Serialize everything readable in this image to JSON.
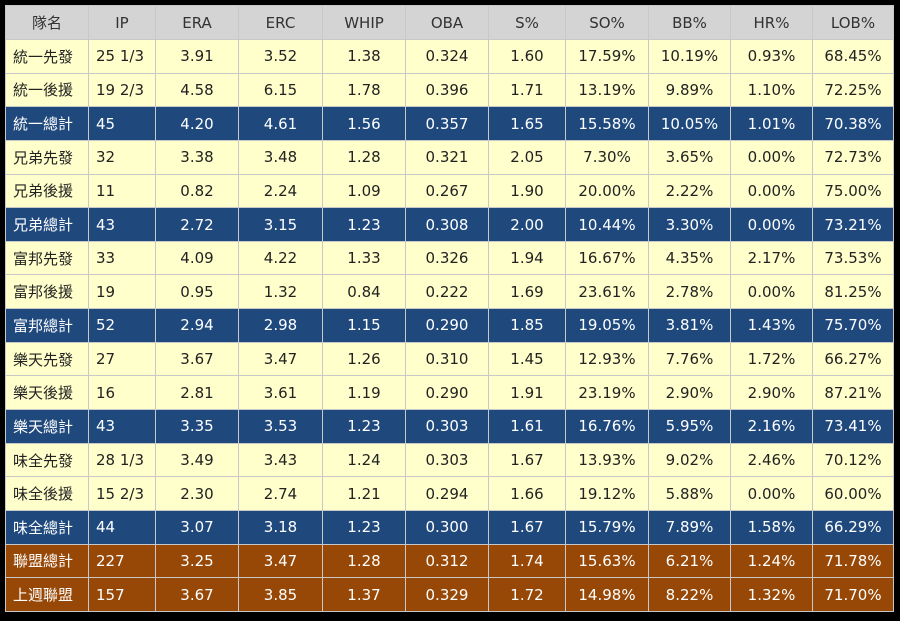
{
  "table": {
    "header": [
      "隊名",
      "IP",
      "ERA",
      "ERC",
      "WHIP",
      "OBA",
      "S%",
      "SO%",
      "BB%",
      "HR%",
      "LOB%"
    ],
    "rows": [
      [
        "統一先發",
        "25 1/3",
        "3.91",
        "3.52",
        "1.38",
        "0.324",
        "1.60",
        "17.59%",
        "10.19%",
        "0.93%",
        "68.45%"
      ],
      [
        "統一後援",
        "19 2/3",
        "4.58",
        "6.15",
        "1.78",
        "0.396",
        "1.71",
        "13.19%",
        "9.89%",
        "1.10%",
        "72.25%"
      ],
      [
        "統一總計",
        "45",
        "4.20",
        "4.61",
        "1.56",
        "0.357",
        "1.65",
        "15.58%",
        "10.05%",
        "1.01%",
        "70.38%"
      ],
      [
        "兄弟先發",
        "32",
        "3.38",
        "3.48",
        "1.28",
        "0.321",
        "2.05",
        "7.30%",
        "3.65%",
        "0.00%",
        "72.73%"
      ],
      [
        "兄弟後援",
        "11",
        "0.82",
        "2.24",
        "1.09",
        "0.267",
        "1.90",
        "20.00%",
        "2.22%",
        "0.00%",
        "75.00%"
      ],
      [
        "兄弟總計",
        "43",
        "2.72",
        "3.15",
        "1.23",
        "0.308",
        "2.00",
        "10.44%",
        "3.30%",
        "0.00%",
        "73.21%"
      ],
      [
        "富邦先發",
        "33",
        "4.09",
        "4.22",
        "1.33",
        "0.326",
        "1.94",
        "16.67%",
        "4.35%",
        "2.17%",
        "73.53%"
      ],
      [
        "富邦後援",
        "19",
        "0.95",
        "1.32",
        "0.84",
        "0.222",
        "1.69",
        "23.61%",
        "2.78%",
        "0.00%",
        "81.25%"
      ],
      [
        "富邦總計",
        "52",
        "2.94",
        "2.98",
        "1.15",
        "0.290",
        "1.85",
        "19.05%",
        "3.81%",
        "1.43%",
        "75.70%"
      ],
      [
        "樂天先發",
        "27",
        "3.67",
        "3.47",
        "1.26",
        "0.310",
        "1.45",
        "12.93%",
        "7.76%",
        "1.72%",
        "66.27%"
      ],
      [
        "樂天後援",
        "16",
        "2.81",
        "3.61",
        "1.19",
        "0.290",
        "1.91",
        "23.19%",
        "2.90%",
        "2.90%",
        "87.21%"
      ],
      [
        "樂天總計",
        "43",
        "3.35",
        "3.53",
        "1.23",
        "0.303",
        "1.61",
        "16.76%",
        "5.95%",
        "2.16%",
        "73.41%"
      ],
      [
        "味全先發",
        "28 1/3",
        "3.49",
        "3.43",
        "1.24",
        "0.303",
        "1.67",
        "13.93%",
        "9.02%",
        "2.46%",
        "70.12%"
      ],
      [
        "味全後援",
        "15 2/3",
        "2.30",
        "2.74",
        "1.21",
        "0.294",
        "1.66",
        "19.12%",
        "5.88%",
        "0.00%",
        "60.00%"
      ],
      [
        "味全總計",
        "44",
        "3.07",
        "3.18",
        "1.23",
        "0.300",
        "1.67",
        "15.79%",
        "7.89%",
        "1.58%",
        "66.29%"
      ],
      [
        "聯盟總計",
        "227",
        "3.25",
        "3.47",
        "1.28",
        "0.312",
        "1.74",
        "15.63%",
        "6.21%",
        "1.24%",
        "71.78%"
      ],
      [
        "上週聯盟",
        "157",
        "3.67",
        "3.85",
        "1.37",
        "0.329",
        "1.72",
        "14.98%",
        "8.22%",
        "1.32%",
        "71.70%"
      ]
    ]
  }
}
